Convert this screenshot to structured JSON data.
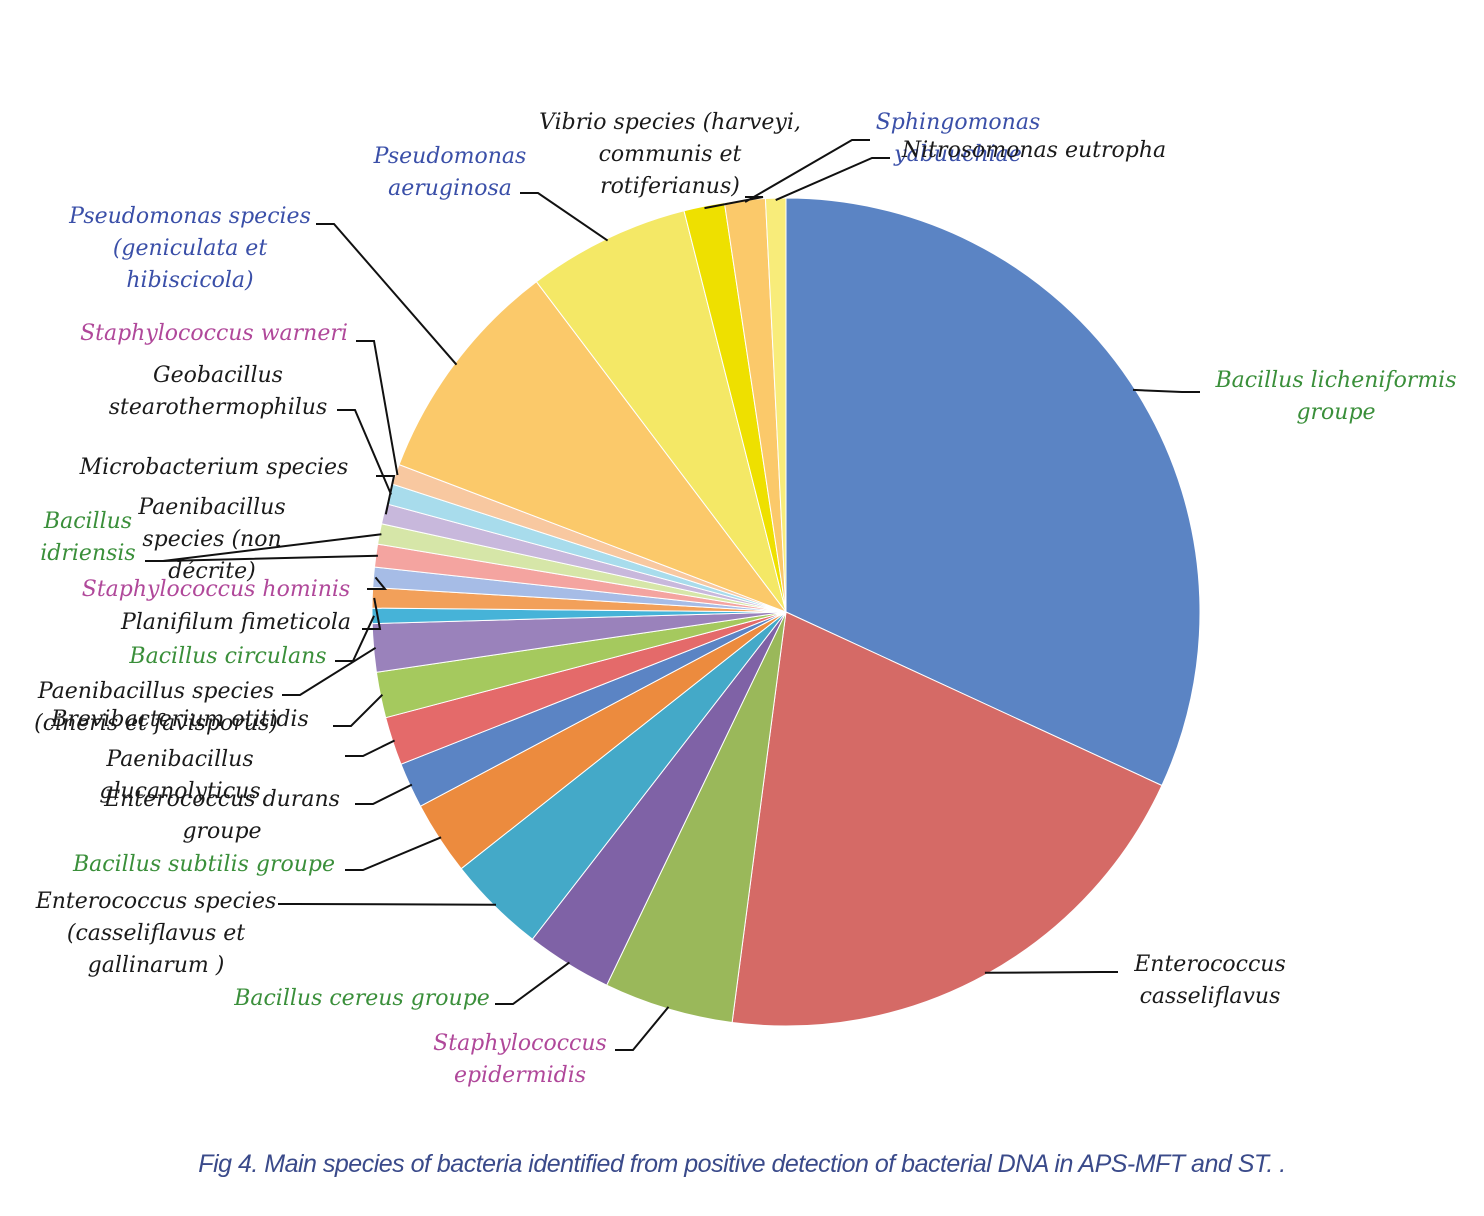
{
  "chart_data": {
    "type": "pie",
    "caption": "Fig 4. Main species of bacteria identified from positive detection of bacterial DNA in APS-MFT and ST. .",
    "slices": [
      {
        "name": "Bacillus  licheniformis groupe",
        "lines": [
          "Bacillus  licheniformis",
          "groupe"
        ],
        "value": 32.2,
        "color": "#5b84c4",
        "label_color": "#3a8f3a"
      },
      {
        "name": "Enterococcus casseliflavus",
        "lines": [
          "Enterococcus",
          "casseliflavus"
        ],
        "value": 20.4,
        "color": "#d56a66",
        "label_color": "#1a1a1a"
      },
      {
        "name": "Staphylococcus epidermidis",
        "lines": [
          "Staphylococcus",
          "epidermidis"
        ],
        "value": 5.1,
        "color": "#9ab85a",
        "label_color": "#b0489a"
      },
      {
        "name": "Bacillus cereus groupe",
        "lines": [
          "Bacillus cereus groupe"
        ],
        "value": 3.4,
        "color": "#7f62a6",
        "label_color": "#3a8f3a"
      },
      {
        "name": "Enterococcus species (casseliflavus et gallinarum )",
        "lines": [
          "Enterococcus species",
          "(casseliflavus et",
          "gallinarum )"
        ],
        "value": 3.9,
        "color": "#44a9c8",
        "label_color": "#1a1a1a"
      },
      {
        "name": "Bacillus subtilis groupe",
        "lines": [
          "Bacillus subtilis groupe"
        ],
        "value": 2.9,
        "color": "#ec8b3e",
        "label_color": "#3a8f3a"
      },
      {
        "name": "Enterococcus durans groupe",
        "lines": [
          "Enterococcus durans",
          "groupe"
        ],
        "value": 1.8,
        "color": "#5b84c4",
        "label_color": "#1a1a1a"
      },
      {
        "name": "Paenibacillus glucanolyticus",
        "lines": [
          "Paenibacillus",
          "glucanolyticus"
        ],
        "value": 1.9,
        "color": "#e46a6a",
        "label_color": "#1a1a1a"
      },
      {
        "name": "Brevibacterium otitidis",
        "lines": [
          "Brevibacterium otitidis"
        ],
        "value": 1.8,
        "color": "#a5c95e",
        "label_color": "#1a1a1a"
      },
      {
        "name": "Paenibacillus species (cineris et favisporus)",
        "lines": [
          "Paenibacillus species",
          "(cineris et favisporus)"
        ],
        "value": 1.9,
        "color": "#9a82bb",
        "label_color": "#1a1a1a"
      },
      {
        "name": "Bacillus circulans",
        "lines": [
          "Bacillus circulans"
        ],
        "value": 0.6,
        "color": "#46b3d8",
        "label_color": "#3a8f3a"
      },
      {
        "name": "Planifilum fimeticola",
        "lines": [
          "Planifilum fimeticola"
        ],
        "value": 0.8,
        "color": "#f2a05a",
        "label_color": "#1a1a1a"
      },
      {
        "name": "Staphylococcus hominis",
        "lines": [
          "Staphylococcus hominis"
        ],
        "value": 0.8,
        "color": "#a6bce6",
        "label_color": "#b0489a"
      },
      {
        "name": "Paenibacillus species (non décrite)",
        "lines": [
          "Paenibacillus",
          "species (non",
          "décrite)"
        ],
        "value": 0.9,
        "color": "#f4a4a0",
        "label_color": "#1a1a1a"
      },
      {
        "name": "Bacillus idriensis",
        "lines": [
          "Bacillus",
          "idriensis"
        ],
        "value": 0.8,
        "color": "#d6e6a8",
        "label_color": "#3a8f3a"
      },
      {
        "name": "Microbacterium species",
        "lines": [
          "Microbacterium species"
        ],
        "value": 0.8,
        "color": "#c8b8dc",
        "label_color": "#1a1a1a"
      },
      {
        "name": "Geobacillus stearothermophilus",
        "lines": [
          "Geobacillus",
          "stearothermophilus"
        ],
        "value": 0.8,
        "color": "#a8dcec",
        "label_color": "#1a1a1a"
      },
      {
        "name": "Staphylococcus warneri",
        "lines": [
          "Staphylococcus warneri"
        ],
        "value": 0.8,
        "color": "#f8c8a0",
        "label_color": "#b0489a"
      },
      {
        "name": "Pseudomonas species (geniculata et hibiscicola)",
        "lines": [
          "Pseudomonas species",
          "(geniculata et",
          "hibiscicola)"
        ],
        "value": 9.0,
        "color": "#fbc96a",
        "label_color": "#3a4fa8"
      },
      {
        "name": "Pseudomonas aeruginosa",
        "lines": [
          "Pseudomonas",
          "aeruginosa"
        ],
        "value": 6.4,
        "color": "#f4e866",
        "label_color": "#3a4fa8"
      },
      {
        "name": "Vibrio species (harveyi, communis et rotiferianus)",
        "lines": [
          "Vibrio species (harveyi,",
          "communis et",
          "rotiferianus)"
        ],
        "value": 1.6,
        "color": "#eee000",
        "label_color": "#1a1a1a"
      },
      {
        "name": "Sphingomonas yabuuchiae",
        "lines": [
          "Sphingomonas",
          "yabuuchiae"
        ],
        "value": 1.6,
        "color": "#fbc96a",
        "label_color": "#3a4fa8"
      },
      {
        "name": "Nitrosomonas eutropha",
        "lines": [
          "Nitrosomonas eutropha"
        ],
        "value": 0.8,
        "color": "#f8ec7a",
        "label_color": "#1a1a1a"
      }
    ]
  }
}
